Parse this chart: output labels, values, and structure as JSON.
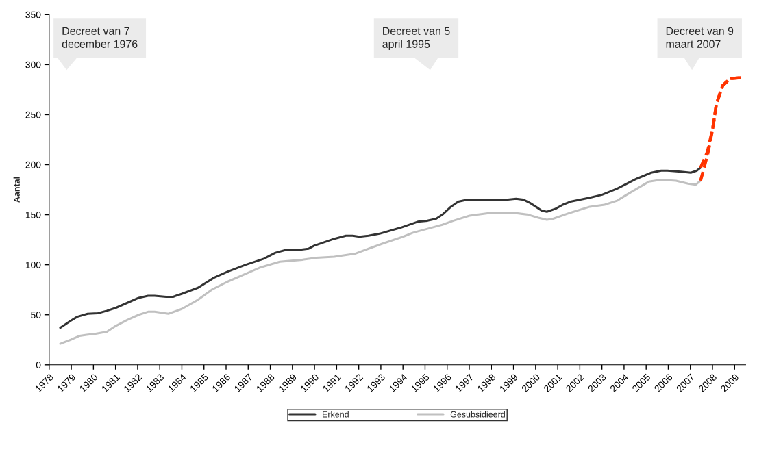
{
  "chart_data": {
    "type": "line",
    "ylabel": "Aantal",
    "xlim": [
      1978,
      2009.5
    ],
    "xticks": [
      1978,
      1979,
      1980,
      1981,
      1982,
      1983,
      1984,
      1985,
      1986,
      1987,
      1988,
      1989,
      1990,
      1991,
      1992,
      1993,
      1994,
      1995,
      1996,
      1997,
      1998,
      1999,
      2000,
      2001,
      2002,
      2003,
      2004,
      2005,
      2006,
      2007,
      2008,
      2009
    ],
    "ylim": [
      0,
      350
    ],
    "yticks": [
      0,
      50,
      100,
      150,
      200,
      250,
      300,
      350
    ],
    "grid": false,
    "legend": "bottom",
    "marker": "none",
    "series": [
      {
        "name": "Erkend",
        "color": "#333333",
        "line_style": "solid",
        "x": [
          1978.5,
          1978.97,
          1979.27,
          1979.74,
          1980.2,
          1980.61,
          1981.02,
          1981.64,
          1982.05,
          1982.47,
          1982.77,
          1983.29,
          1983.6,
          1984.01,
          1984.73,
          1985.45,
          1986.06,
          1986.89,
          1987.71,
          1988.23,
          1988.74,
          1989.36,
          1989.72,
          1989.98,
          1990.9,
          1991.42,
          1991.73,
          1992.03,
          1992.44,
          1992.94,
          1993.89,
          1994.67,
          1995.11,
          1995.5,
          1995.78,
          1996.17,
          1996.5,
          1996.89,
          1997.23,
          1998.67,
          1999.12,
          1999.45,
          1999.73,
          2000.01,
          2000.28,
          2000.51,
          2000.9,
          2001.23,
          2001.57,
          2002.45,
          2003.01,
          2003.68,
          2004.12,
          2004.57,
          2005.23,
          2005.68,
          2005.96,
          2006.57,
          2007.02,
          2007.29,
          2007.46
        ],
        "values": [
          37,
          44,
          48,
          51,
          51.5,
          54,
          57,
          63,
          67,
          69,
          69,
          68,
          68,
          71,
          77,
          87,
          93,
          100,
          106,
          112,
          115,
          115,
          116,
          119,
          126,
          129,
          129,
          128,
          129,
          131,
          137,
          143,
          144,
          146,
          150,
          158,
          163,
          165,
          165,
          165,
          166,
          165,
          162,
          158,
          154,
          153,
          156,
          160,
          163,
          167,
          170,
          176,
          181,
          186,
          192,
          194,
          194,
          193,
          192,
          194,
          197
        ]
      },
      {
        "name": "Gesubsidieerd",
        "color": "#c0c0c0",
        "line_style": "solid",
        "x": [
          1978.5,
          1978.97,
          1979.38,
          1979.69,
          1980.1,
          1980.61,
          1981.02,
          1981.54,
          1982.05,
          1982.47,
          1982.77,
          1983.39,
          1984.01,
          1984.73,
          1985.35,
          1986.06,
          1986.89,
          1987.51,
          1988.43,
          1989.46,
          1990.08,
          1990.9,
          1991.52,
          1991.83,
          1992.44,
          1993.06,
          1994.0,
          1994.45,
          1995.45,
          1995.78,
          1996.28,
          1997.01,
          1998.0,
          1999.0,
          1999.67,
          2000.12,
          2000.51,
          2000.79,
          2001.57,
          2002.45,
          2003.12,
          2003.68,
          2004.12,
          2005.12,
          2005.68,
          2006.35,
          2006.9,
          2007.24,
          2007.46
        ],
        "values": [
          21,
          25,
          29,
          30,
          31,
          33,
          39,
          45,
          50,
          53,
          53,
          51,
          56,
          65,
          75,
          83,
          91,
          97,
          103,
          105,
          107,
          108,
          110,
          111,
          116,
          121,
          128,
          132,
          138,
          140,
          144,
          149,
          152,
          152,
          150,
          147,
          145,
          146,
          152,
          158,
          160,
          164,
          170,
          183,
          185,
          184,
          181,
          180,
          184
        ]
      },
      {
        "color": "#ff3300",
        "line_style": "dashed",
        "x": [
          2007.46,
          2007.77,
          2008.01,
          2008.18,
          2008.46,
          2008.79,
          2009.3
        ],
        "values": [
          197,
          213,
          236,
          261,
          279,
          286,
          287
        ]
      },
      {
        "color": "#ff3300",
        "line_style": "dashed",
        "x": [
          2007.46,
          2007.79,
          2008.01,
          2008.18,
          2008.46,
          2008.79,
          2009.3
        ],
        "values": [
          184,
          211,
          236,
          261,
          279,
          286,
          287
        ]
      }
    ],
    "annotations": [
      "Decreet van 7\ndecember 1976",
      "Decreet van 5\napril 1995",
      "Decreet van 9\nmaart 2007"
    ]
  }
}
